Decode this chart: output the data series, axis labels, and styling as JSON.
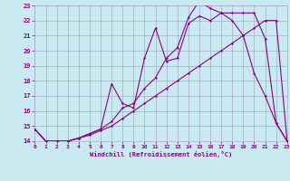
{
  "xlabel": "Windchill (Refroidissement éolien,°C)",
  "xlim": [
    0,
    23
  ],
  "ylim": [
    14,
    23
  ],
  "xticks": [
    0,
    1,
    2,
    3,
    4,
    5,
    6,
    7,
    8,
    9,
    10,
    11,
    12,
    13,
    14,
    15,
    16,
    17,
    18,
    19,
    20,
    21,
    22,
    23
  ],
  "yticks": [
    14,
    15,
    16,
    17,
    18,
    19,
    20,
    21,
    22,
    23
  ],
  "bg_color": "#c8eaf0",
  "line_color": "#880088",
  "grid_color": "#aaaacc",
  "line1_x": [
    0,
    1,
    2,
    3,
    4,
    5,
    6,
    7,
    8,
    9,
    10,
    11,
    12,
    13,
    14,
    15,
    16,
    17,
    18,
    19,
    20,
    21,
    22,
    23
  ],
  "line1_y": [
    14.8,
    14.0,
    14.0,
    14.0,
    14.2,
    14.4,
    14.7,
    15.0,
    15.5,
    16.0,
    16.5,
    17.0,
    17.5,
    18.0,
    18.5,
    19.0,
    19.5,
    20.0,
    20.5,
    21.0,
    21.5,
    22.0,
    22.0,
    14.0
  ],
  "line2_x": [
    0,
    1,
    2,
    3,
    4,
    5,
    6,
    7,
    8,
    9,
    10,
    11,
    12,
    13,
    14,
    15,
    16,
    17,
    18,
    19,
    20,
    21,
    22,
    23
  ],
  "line2_y": [
    14.8,
    14.0,
    14.0,
    14.0,
    14.2,
    14.5,
    14.8,
    15.3,
    16.2,
    16.5,
    17.5,
    18.2,
    19.5,
    20.2,
    22.2,
    23.3,
    22.8,
    22.5,
    22.0,
    21.0,
    18.5,
    17.0,
    15.2,
    14.0
  ],
  "line3_x": [
    0,
    1,
    2,
    3,
    4,
    5,
    6,
    7,
    8,
    9,
    10,
    11,
    12,
    13,
    14,
    15,
    16,
    17,
    18,
    19,
    20,
    21,
    22,
    23
  ],
  "line3_y": [
    14.8,
    14.0,
    14.0,
    14.0,
    14.2,
    14.5,
    14.8,
    17.8,
    16.5,
    16.2,
    19.5,
    21.5,
    19.3,
    19.5,
    21.8,
    22.3,
    22.0,
    22.5,
    22.5,
    22.5,
    22.5,
    20.8,
    15.2,
    14.0
  ]
}
